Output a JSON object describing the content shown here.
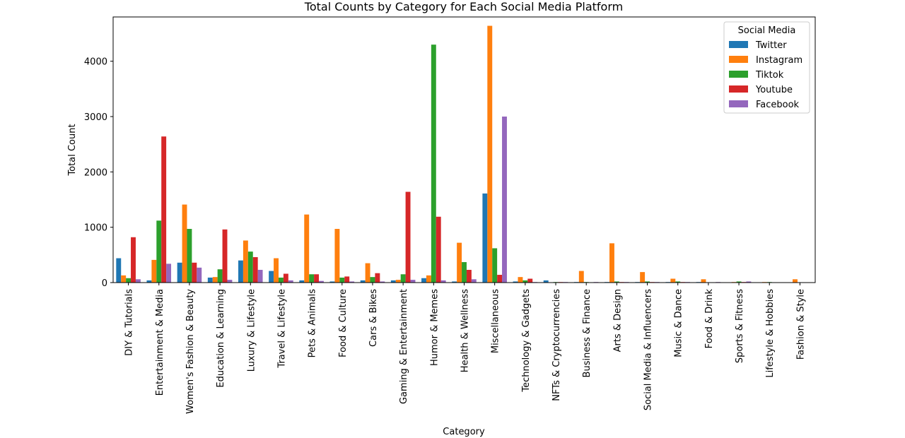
{
  "chart_data": {
    "type": "bar",
    "title": "Total Counts by Category for Each Social Media Platform",
    "xlabel": "Category",
    "ylabel": "Total Count",
    "ylim": [
      0,
      4800
    ],
    "yticks": [
      0,
      1000,
      2000,
      3000,
      4000
    ],
    "grid": false,
    "legend": {
      "title": "Social Media",
      "placement": "top-right"
    },
    "categories": [
      "DIY & Tutorials",
      "Entertainment & Media",
      "Women's Fashion & Beauty",
      "Education & Learning",
      "Luxury & Lifestyle",
      "Travel & Lifestyle",
      "Pets & Animals",
      "Food & Culture",
      "Cars & Bikes",
      "Gaming & Entertainment",
      "Humor & Memes",
      "Health & Wellness",
      "Miscellaneous",
      "Technology & Gadgets",
      "NFTs & Cryptocurrencies",
      "Business & Finance",
      "Arts & Design",
      "Social Media & Influencers",
      "Music & Dance",
      "Food & Drink",
      "Sports & Fitness",
      "Lifestyle & Hobbies",
      "Fashion & Style"
    ],
    "series": [
      {
        "name": "Twitter",
        "color": "#1f77b4",
        "values": [
          440,
          40,
          360,
          90,
          400,
          210,
          40,
          20,
          40,
          40,
          80,
          20,
          1610,
          20,
          40,
          10,
          10,
          10,
          10,
          10,
          0,
          0,
          0
        ]
      },
      {
        "name": "Instagram",
        "color": "#ff7f0e",
        "values": [
          130,
          410,
          1410,
          100,
          760,
          440,
          1230,
          970,
          350,
          50,
          130,
          720,
          4640,
          100,
          0,
          210,
          710,
          190,
          70,
          60,
          10,
          10,
          60
        ]
      },
      {
        "name": "Tiktok",
        "color": "#2ca02c",
        "values": [
          80,
          1120,
          970,
          240,
          560,
          90,
          150,
          90,
          100,
          150,
          4300,
          370,
          620,
          40,
          10,
          10,
          20,
          20,
          20,
          0,
          20,
          10,
          0
        ]
      },
      {
        "name": "Youtube",
        "color": "#d62728",
        "values": [
          820,
          2640,
          360,
          960,
          460,
          160,
          150,
          110,
          170,
          1640,
          1190,
          230,
          140,
          70,
          10,
          0,
          10,
          10,
          10,
          0,
          10,
          0,
          0
        ]
      },
      {
        "name": "Facebook",
        "color": "#9467bd",
        "values": [
          60,
          340,
          270,
          50,
          230,
          40,
          30,
          20,
          20,
          50,
          40,
          60,
          3000,
          10,
          10,
          10,
          10,
          10,
          10,
          10,
          20,
          0,
          0
        ]
      }
    ]
  }
}
